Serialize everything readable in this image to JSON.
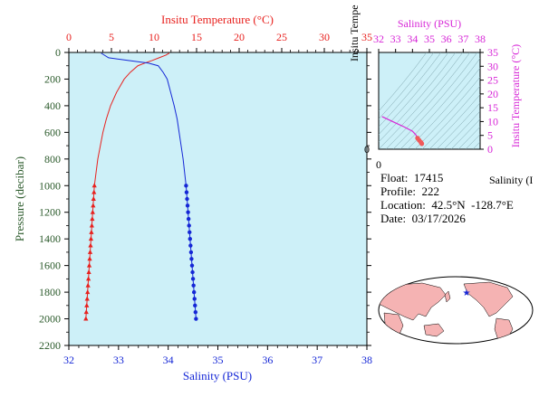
{
  "colors": {
    "temperature": "#e8211e",
    "salinity": "#1527d6",
    "pressure_axis": "#2b5a2b",
    "plot_bg": "#cdf0f8",
    "ts_line": "#d726d7",
    "ts_points": "#f05a5a",
    "land": "#f5b3b3",
    "ocean": "#ffffff",
    "float_marker": "#1527d6"
  },
  "main_chart": {
    "temperature_axis_title": "Insitu Temperature (°C)",
    "salinity_axis_title": "Salinity (PSU)",
    "pressure_axis_title": "Pressure (decibar)",
    "temperature_ticks": [
      "0",
      "5",
      "10",
      "15",
      "20",
      "25",
      "30",
      "35"
    ],
    "salinity_ticks": [
      "32",
      "33",
      "34",
      "35",
      "36",
      "37",
      "38"
    ],
    "pressure_ticks": [
      "0",
      "200",
      "400",
      "600",
      "800",
      "1000",
      "1200",
      "1400",
      "1600",
      "1800",
      "2000",
      "2200"
    ]
  },
  "ts_chart": {
    "top_axis_title": "Salinity (PSU)",
    "top_ticks": [
      "32",
      "33",
      "34",
      "35",
      "36",
      "37",
      "38"
    ],
    "right_axis_title": "Insitu Temperature (°C)",
    "right_ticks": [
      "0",
      "5",
      "10",
      "15",
      "20",
      "25",
      "30",
      "35"
    ],
    "left_axis_title": "Insitu Tempe",
    "left_zero": "0",
    "bottom_zero": "0",
    "bottom_axis_title": "Salinity (I"
  },
  "info": {
    "float": "Float:  17415",
    "profile": "Profile:  222",
    "location": "Location:  42.5°N  -128.7°E",
    "date": "Date:  03/17/2026"
  },
  "chart_data": [
    {
      "type": "line",
      "ylabel": "Pressure (decibar)",
      "ylim": [
        2200,
        0
      ],
      "series": [
        {
          "name": "Insitu Temperature (°C)",
          "axis": "top",
          "xlim": [
            0,
            35
          ],
          "pressure": [
            5,
            20,
            40,
            60,
            80,
            100,
            150,
            200,
            300,
            400,
            500,
            600,
            800,
            1000,
            1050,
            1100,
            1150,
            1200,
            1250,
            1300,
            1350,
            1400,
            1450,
            1500,
            1550,
            1600,
            1650,
            1700,
            1750,
            1800,
            1850,
            1900,
            1950,
            2000
          ],
          "values": [
            11.8,
            11.4,
            10.6,
            9.8,
            8.9,
            8.1,
            7.2,
            6.5,
            5.6,
            4.9,
            4.4,
            4.0,
            3.4,
            3.0,
            2.95,
            2.9,
            2.85,
            2.8,
            2.75,
            2.7,
            2.65,
            2.6,
            2.55,
            2.5,
            2.45,
            2.4,
            2.35,
            2.3,
            2.25,
            2.2,
            2.15,
            2.1,
            2.05,
            2.0
          ]
        },
        {
          "name": "Salinity (PSU)",
          "axis": "bottom",
          "xlim": [
            32,
            38
          ],
          "pressure": [
            5,
            40,
            60,
            80,
            100,
            150,
            200,
            300,
            400,
            500,
            600,
            800,
            1000,
            1050,
            1100,
            1150,
            1200,
            1250,
            1300,
            1350,
            1400,
            1450,
            1500,
            1550,
            1600,
            1650,
            1700,
            1750,
            1800,
            1850,
            1900,
            1950,
            2000
          ],
          "values": [
            32.65,
            32.8,
            33.2,
            33.6,
            33.8,
            33.9,
            33.98,
            34.05,
            34.12,
            34.18,
            34.22,
            34.3,
            34.36,
            34.37,
            34.38,
            34.39,
            34.4,
            34.41,
            34.42,
            34.43,
            34.44,
            34.45,
            34.46,
            34.47,
            34.48,
            34.49,
            34.5,
            34.51,
            34.52,
            34.53,
            34.54,
            34.55,
            34.56
          ]
        }
      ]
    },
    {
      "type": "scatter",
      "xlabel": "Salinity (PSU)",
      "ylabel": "Insitu Temperature (°C)",
      "xlim": [
        32,
        38
      ],
      "ylim": [
        0,
        35
      ],
      "x": [
        32.2,
        33.0,
        33.5,
        34.0,
        34.2,
        34.3,
        34.4,
        34.5,
        34.55
      ],
      "y": [
        11.8,
        9.5,
        8.1,
        6.5,
        5.2,
        4.0,
        3.2,
        2.5,
        2.0
      ]
    }
  ]
}
